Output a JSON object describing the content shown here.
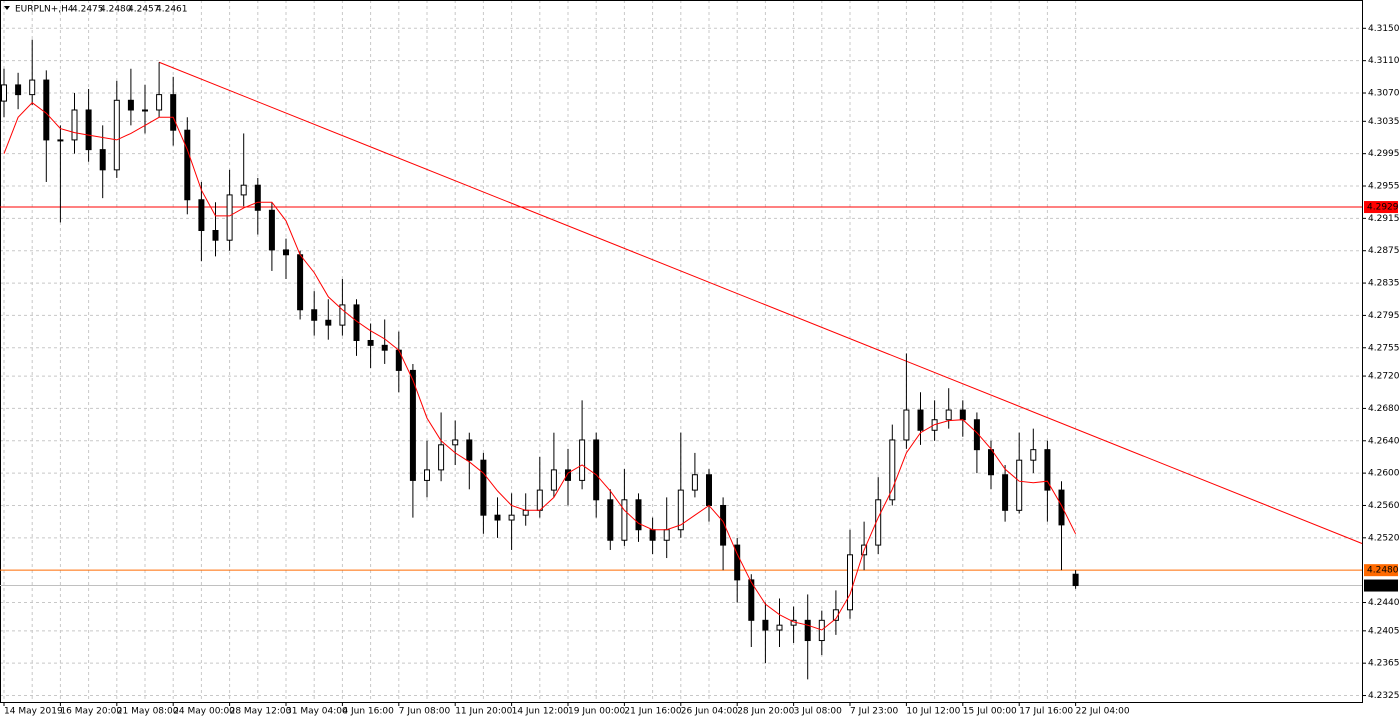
{
  "chart_data": {
    "type": "candlestick",
    "symbol": "EURPLN+,H4",
    "ohlc_labels": [
      "4.2475",
      "4.2480",
      "4.2457",
      "4.2461"
    ],
    "categories": [
      "14 May 2019",
      null,
      null,
      null,
      "16 May 20:00",
      null,
      null,
      null,
      "21 May 08:00",
      null,
      null,
      null,
      "24 May 00:00",
      null,
      null,
      null,
      "28 May 12:00",
      null,
      null,
      null,
      "31 May 04:00",
      null,
      null,
      null,
      "4 Jun 16:00",
      null,
      null,
      null,
      "7 Jun 08:00",
      null,
      null,
      null,
      "11 Jun 20:00",
      null,
      null,
      null,
      "14 Jun 12:00",
      null,
      null,
      null,
      "19 Jun 00:00",
      null,
      null,
      null,
      "21 Jun 16:00",
      null,
      null,
      null,
      "26 Jun 04:00",
      null,
      null,
      null,
      "28 Jun 20:00",
      null,
      null,
      null,
      "3 Jul 08:00",
      null,
      null,
      null,
      "7 Jul 23:00",
      null,
      null,
      null,
      "10 Jul 12:00",
      null,
      null,
      null,
      "15 Jul 00:00",
      null,
      null,
      null,
      "17 Jul 16:00",
      null,
      null,
      null,
      "22 Jul 04:00"
    ],
    "open": [
      4.306,
      4.308,
      4.3068,
      4.3086,
      4.3012,
      4.3012,
      4.3049,
      4.3,
      4.2975,
      4.3061,
      4.3049,
      4.3049,
      4.3068,
      4.3024,
      4.2938,
      4.29,
      4.2888,
      4.2944,
      4.2956,
      4.2925,
      4.2876,
      4.287,
      4.2802,
      4.2789,
      4.2783,
      4.2808,
      4.2764,
      4.2758,
      4.2752,
      4.2727,
      4.2591,
      4.2604,
      4.2635,
      4.2641,
      4.2616,
      4.2548,
      4.2542,
      4.2548,
      4.2554,
      4.2579,
      4.2604,
      4.2591,
      4.2641,
      4.2567,
      4.2517,
      4.2567,
      4.253,
      4.2517,
      4.253,
      4.2579,
      4.2598,
      4.256,
      4.2511,
      4.2468,
      4.2418,
      4.2406,
      4.2412,
      4.2418,
      4.2393,
      4.2418,
      4.2431,
      4.2499,
      4.2511,
      4.2567,
      4.2641,
      4.2678,
      4.2653,
      4.2666,
      4.2678,
      4.2666,
      4.2629,
      4.2598,
      4.2554,
      4.2616,
      4.2629,
      4.2579,
      4.2475
    ],
    "high": [
      4.31,
      4.3095,
      4.3136,
      4.3098,
      4.303,
      4.307,
      4.3075,
      4.303,
      4.3085,
      4.31,
      4.308,
      4.3108,
      4.309,
      4.304,
      4.296,
      4.2935,
      4.2975,
      4.302,
      4.2965,
      4.2935,
      4.289,
      4.2875,
      4.2825,
      4.2815,
      4.284,
      4.2815,
      4.2785,
      4.279,
      4.2775,
      4.2735,
      4.264,
      4.2675,
      4.2665,
      4.265,
      4.2625,
      4.257,
      4.2575,
      4.2575,
      4.262,
      4.265,
      4.263,
      4.269,
      4.265,
      4.258,
      4.2605,
      4.2575,
      4.2545,
      4.257,
      4.265,
      4.2625,
      4.2605,
      4.257,
      4.252,
      4.2475,
      4.244,
      4.2445,
      4.2435,
      4.245,
      4.243,
      4.2455,
      4.253,
      4.254,
      4.2595,
      4.266,
      4.2748,
      4.27,
      4.269,
      4.2705,
      4.269,
      4.2675,
      4.264,
      4.261,
      4.265,
      4.2655,
      4.264,
      4.259,
      4.248
    ],
    "low": [
      4.304,
      4.305,
      4.3055,
      4.296,
      4.291,
      4.2995,
      4.2985,
      4.294,
      4.2965,
      4.303,
      4.302,
      4.304,
      4.3005,
      4.292,
      4.2862,
      4.2868,
      4.2875,
      4.293,
      4.2895,
      4.285,
      4.284,
      4.279,
      4.277,
      4.2765,
      4.277,
      4.2745,
      4.273,
      4.2735,
      4.27,
      4.2545,
      4.257,
      4.259,
      4.261,
      4.258,
      4.2525,
      4.252,
      4.2505,
      4.2535,
      4.2545,
      4.257,
      4.256,
      4.258,
      4.2545,
      4.2505,
      4.251,
      4.2515,
      4.25,
      4.2495,
      4.252,
      4.257,
      4.254,
      4.248,
      4.244,
      4.2385,
      4.2365,
      4.2385,
      4.239,
      4.2345,
      4.2375,
      4.24,
      4.242,
      4.248,
      4.25,
      4.256,
      4.263,
      4.2635,
      4.264,
      4.2655,
      4.2645,
      4.26,
      4.258,
      4.254,
      4.255,
      4.26,
      4.254,
      4.248,
      4.2457
    ],
    "close": [
      4.308,
      4.3068,
      4.3086,
      4.3012,
      4.3012,
      4.3049,
      4.3,
      4.2975,
      4.3061,
      4.3049,
      4.3049,
      4.3068,
      4.3024,
      4.2938,
      4.29,
      4.2888,
      4.2944,
      4.2956,
      4.2925,
      4.2876,
      4.287,
      4.2802,
      4.2789,
      4.2783,
      4.2808,
      4.2764,
      4.2758,
      4.2752,
      4.2727,
      4.2591,
      4.2604,
      4.2635,
      4.2641,
      4.2616,
      4.2548,
      4.2542,
      4.2548,
      4.2554,
      4.2579,
      4.2604,
      4.2591,
      4.2641,
      4.2567,
      4.2517,
      4.2567,
      4.253,
      4.2517,
      4.253,
      4.2579,
      4.2598,
      4.256,
      4.2511,
      4.2468,
      4.2418,
      4.2406,
      4.2412,
      4.2418,
      4.2393,
      4.2418,
      4.2431,
      4.2499,
      4.2511,
      4.2567,
      4.2641,
      4.2678,
      4.2653,
      4.2666,
      4.2678,
      4.2666,
      4.2629,
      4.2598,
      4.2554,
      4.2616,
      4.2629,
      4.2579,
      4.2536,
      4.2461
    ],
    "candle_color": "#000000",
    "ma": {
      "color": "#ff0000",
      "values": [
        4.2995,
        4.304,
        4.3058,
        4.3045,
        4.3026,
        4.3021,
        4.3018,
        4.3015,
        4.3012,
        4.302,
        4.303,
        4.304,
        4.304,
        4.3,
        4.295,
        4.2918,
        4.2918,
        4.2928,
        4.2935,
        4.2935,
        4.2912,
        4.287,
        4.2848,
        4.2818,
        4.2802,
        4.2788,
        4.2776,
        4.2766,
        4.2752,
        4.2715,
        4.2668,
        4.264,
        4.2625,
        4.2614,
        4.26,
        4.2578,
        4.256,
        4.2554,
        4.2554,
        4.257,
        4.26,
        4.261,
        4.2598,
        4.2578,
        4.2554,
        4.2538,
        4.253,
        4.253,
        4.2536,
        4.2548,
        4.256,
        4.254,
        4.25,
        4.2465,
        4.2438,
        4.2425,
        4.2416,
        4.2412,
        4.2406,
        4.242,
        4.245,
        4.2505,
        4.2545,
        4.258,
        4.2625,
        4.265,
        4.266,
        4.2665,
        4.2666,
        4.265,
        4.263,
        4.2605,
        4.259,
        4.2588,
        4.259,
        4.256,
        4.2525
      ]
    },
    "trendline": {
      "start": 4.3108,
      "end": 4.2513,
      "color": "#ff0000"
    },
    "levels": [
      {
        "value": 4.2929,
        "label": "4.2929",
        "color": "#ff0000",
        "text_color": "#ffffff"
      },
      {
        "value": 4.248,
        "label": "4.2480",
        "color": "#ff6a00",
        "text_color": "#ffffff"
      },
      {
        "value": 4.2461,
        "label": "4.2461",
        "color": "#c0c0c0",
        "tag_color": "#000000",
        "text_color": "#ffffff"
      }
    ],
    "ylim": [
      4.2317,
      4.3185
    ],
    "yticks": [
      {
        "value": 4.315,
        "label": "4.3150"
      },
      {
        "value": 4.311,
        "label": "4.3110"
      },
      {
        "value": 4.307,
        "label": "4.3070"
      },
      {
        "value": 4.3035,
        "label": "4.3035"
      },
      {
        "value": 4.2995,
        "label": "4.2995"
      },
      {
        "value": 4.2955,
        "label": "4.2955"
      },
      {
        "value": 4.2915,
        "label": "4.2915"
      },
      {
        "value": 4.2875,
        "label": "4.2875"
      },
      {
        "value": 4.2835,
        "label": "4.2835"
      },
      {
        "value": 4.2795,
        "label": "4.2795"
      },
      {
        "value": 4.2755,
        "label": "4.2755"
      },
      {
        "value": 4.272,
        "label": "4.2720"
      },
      {
        "value": 4.268,
        "label": "4.2680"
      },
      {
        "value": 4.264,
        "label": "4.2640"
      },
      {
        "value": 4.26,
        "label": "4.2600"
      },
      {
        "value": 4.256,
        "label": "4.2560"
      },
      {
        "value": 4.252,
        "label": "4.2520"
      },
      {
        "value": 4.244,
        "label": "4.2440"
      },
      {
        "value": 4.2405,
        "label": "4.2405"
      },
      {
        "value": 4.2365,
        "label": "4.2365"
      },
      {
        "value": 4.2325,
        "label": "4.2325"
      }
    ],
    "grid": true
  }
}
